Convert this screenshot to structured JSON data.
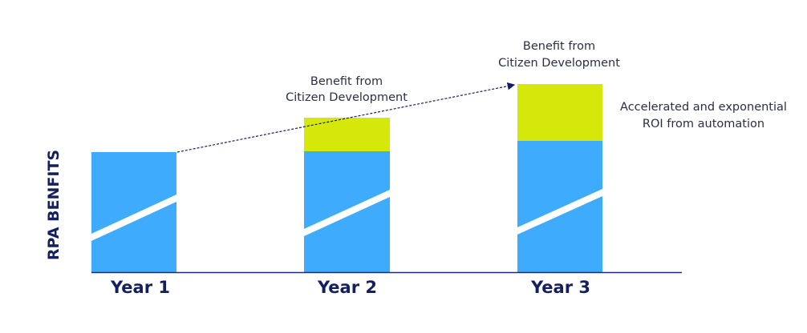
{
  "y_axis_label": "RPA BENFITS",
  "years": [
    "Year 1",
    "Year 2",
    "Year 3"
  ],
  "annotations": {
    "year2_benefit": [
      "Benefit from",
      "Citizen Development"
    ],
    "year3_benefit": [
      "Benefit from",
      "Citizen Development"
    ],
    "roi": [
      "Accelerated and exponential",
      "ROI from automation"
    ]
  },
  "colors": {
    "rpa_bar": "#3eabfd",
    "citizen_dev_bar": "#d5e80a",
    "text_navy": "#14205e",
    "axis": "#1f2d6b"
  }
}
